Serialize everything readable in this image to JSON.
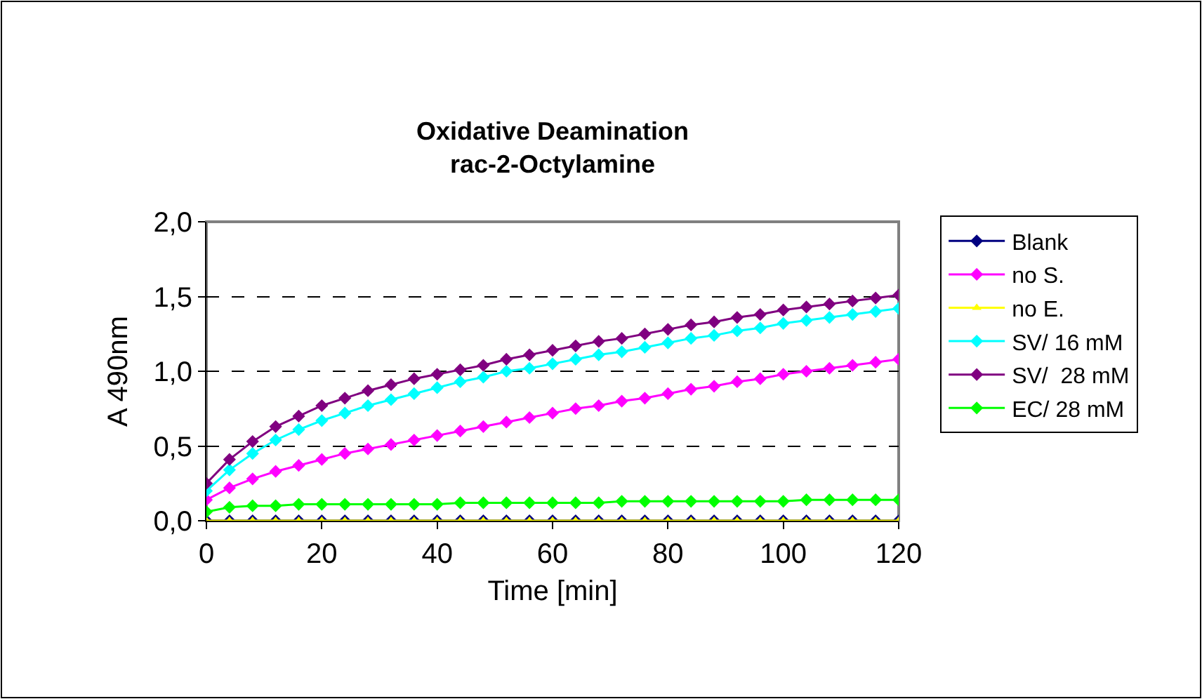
{
  "chart_data": {
    "type": "line",
    "title": "Oxidative Deamination\nrac-2-Octylamine",
    "xlabel": "Time [min]",
    "ylabel": "A 490nm",
    "x": [
      0,
      4,
      8,
      12,
      16,
      20,
      24,
      28,
      32,
      36,
      40,
      44,
      48,
      52,
      56,
      60,
      64,
      68,
      72,
      76,
      80,
      84,
      88,
      92,
      96,
      100,
      104,
      108,
      112,
      116,
      120
    ],
    "series": [
      {
        "name": "Blank",
        "color": "#000080",
        "marker": "diamond",
        "values": [
          0,
          0,
          0,
          0,
          0,
          0,
          0,
          0,
          0,
          0,
          0,
          0,
          0,
          0,
          0,
          0,
          0,
          0,
          0,
          0,
          0,
          0,
          0,
          0,
          0,
          0,
          0,
          0,
          0,
          0,
          0
        ]
      },
      {
        "name": "no S.",
        "color": "#ff00ff",
        "marker": "diamond",
        "values": [
          0.14,
          0.22,
          0.28,
          0.33,
          0.37,
          0.41,
          0.45,
          0.48,
          0.51,
          0.54,
          0.57,
          0.6,
          0.63,
          0.66,
          0.69,
          0.72,
          0.75,
          0.77,
          0.8,
          0.82,
          0.85,
          0.88,
          0.9,
          0.93,
          0.95,
          0.98,
          1.0,
          1.02,
          1.04,
          1.06,
          1.08
        ]
      },
      {
        "name": "no E.",
        "color": "#ffff00",
        "marker": "triangle",
        "values": [
          0,
          0,
          0,
          0,
          0,
          0,
          0,
          0,
          0,
          0,
          0,
          0,
          0,
          0,
          0,
          0,
          0,
          0,
          0,
          0,
          0,
          0,
          0,
          0,
          0,
          0,
          0,
          0,
          0,
          0,
          0
        ]
      },
      {
        "name": "SV/ 16 mM",
        "color": "#00ffff",
        "marker": "diamond",
        "values": [
          0.2,
          0.34,
          0.45,
          0.54,
          0.61,
          0.67,
          0.72,
          0.77,
          0.81,
          0.85,
          0.89,
          0.93,
          0.96,
          1.0,
          1.02,
          1.05,
          1.08,
          1.11,
          1.13,
          1.16,
          1.19,
          1.22,
          1.24,
          1.27,
          1.29,
          1.32,
          1.34,
          1.36,
          1.38,
          1.4,
          1.42
        ]
      },
      {
        "name": "SV/  28 mM",
        "color": "#800080",
        "marker": "diamond",
        "values": [
          0.25,
          0.41,
          0.53,
          0.63,
          0.7,
          0.77,
          0.82,
          0.87,
          0.91,
          0.95,
          0.98,
          1.01,
          1.04,
          1.08,
          1.11,
          1.14,
          1.17,
          1.2,
          1.22,
          1.25,
          1.28,
          1.31,
          1.33,
          1.36,
          1.38,
          1.41,
          1.43,
          1.45,
          1.47,
          1.49,
          1.51
        ]
      },
      {
        "name": "EC/ 28 mM",
        "color": "#00ff00",
        "marker": "diamond",
        "values": [
          0.06,
          0.09,
          0.1,
          0.1,
          0.11,
          0.11,
          0.11,
          0.11,
          0.11,
          0.11,
          0.11,
          0.12,
          0.12,
          0.12,
          0.12,
          0.12,
          0.12,
          0.12,
          0.13,
          0.13,
          0.13,
          0.13,
          0.13,
          0.13,
          0.13,
          0.13,
          0.14,
          0.14,
          0.14,
          0.14,
          0.14
        ]
      }
    ],
    "xlim": [
      0,
      120
    ],
    "xticks": [
      0,
      20,
      40,
      60,
      80,
      100,
      120
    ],
    "ylim": [
      0,
      2
    ],
    "yticks": [
      {
        "value": 0,
        "label": "0,0"
      },
      {
        "value": 0.5,
        "label": "0,5"
      },
      {
        "value": 1,
        "label": "1,0"
      },
      {
        "value": 1.5,
        "label": "1,5"
      },
      {
        "value": 2,
        "label": "2,0"
      }
    ],
    "grid": "y",
    "legend": "right",
    "line_style": "solid"
  }
}
